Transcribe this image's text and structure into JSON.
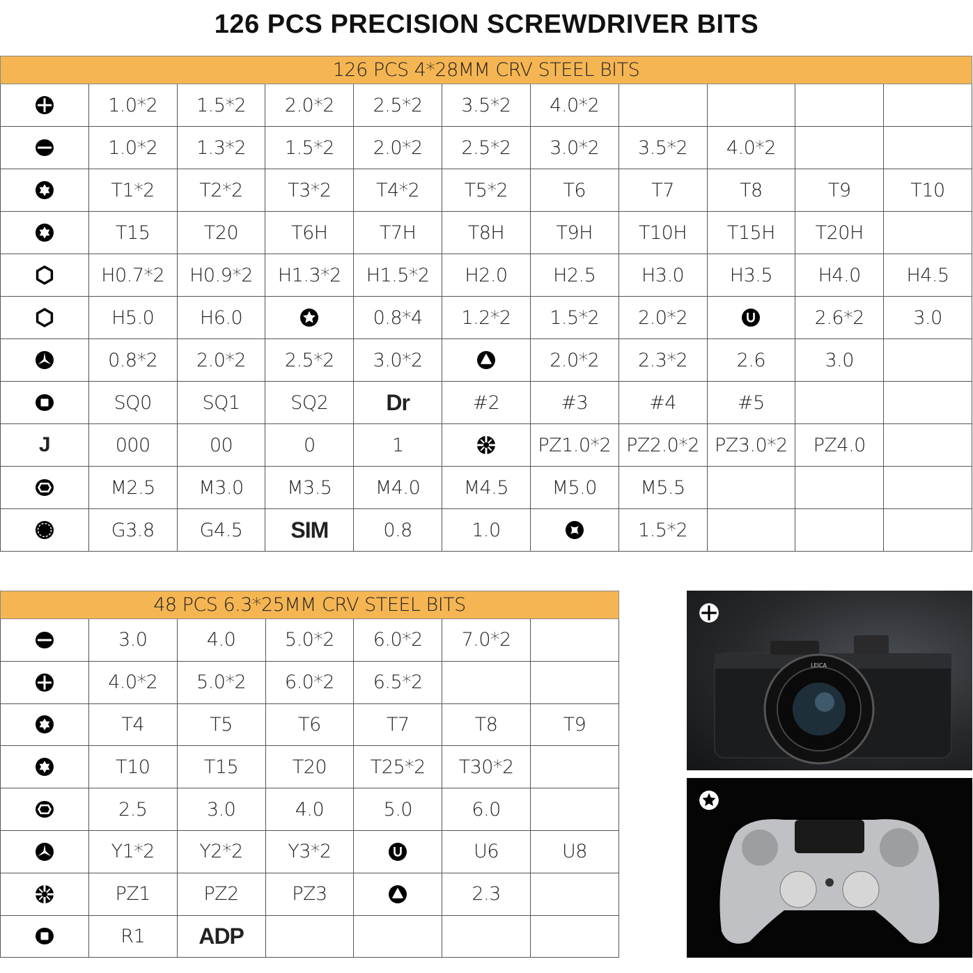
{
  "title": "126 PCS PRECISION SCREWDRIVER BITS",
  "table1": {
    "header": "126 PCS 4*28MM CRV STEEL BITS",
    "rows": [
      {
        "icon": "phillips",
        "cells": [
          "1.0*2",
          "1.5*2",
          "2.0*2",
          "2.5*2",
          "3.5*2",
          "4.0*2",
          "",
          "",
          "",
          ""
        ]
      },
      {
        "icon": "slotted",
        "cells": [
          "1.0*2",
          "1.3*2",
          "1.5*2",
          "2.0*2",
          "2.5*2",
          "3.0*2",
          "3.5*2",
          "4.0*2",
          "",
          ""
        ]
      },
      {
        "icon": "torx",
        "cells": [
          "T1*2",
          "T2*2",
          "T3*2",
          "T4*2",
          "T5*2",
          "T6",
          "T7",
          "T8",
          "T9",
          "T10"
        ]
      },
      {
        "icon": "torx",
        "cells": [
          "T15",
          "T20",
          "T6H",
          "T7H",
          "T8H",
          "T9H",
          "T10H",
          "T15H",
          "T20H",
          ""
        ]
      },
      {
        "icon": "hex",
        "cells": [
          "H0.7*2",
          "H0.9*2",
          "H1.3*2",
          "H1.5*2",
          "H2.0",
          "H2.5",
          "H3.0",
          "H3.5",
          "H4.0",
          "H4.5"
        ]
      },
      {
        "icon": "hex",
        "cells": [
          "H5.0",
          "H6.0",
          {
            "icon": "pentalobe"
          },
          "0.8*4",
          "1.2*2",
          "1.5*2",
          "2.0*2",
          {
            "icon": "u"
          },
          "2.6*2",
          "3.0"
        ]
      },
      {
        "icon": "triwing",
        "cells": [
          "0.8*2",
          "2.0*2",
          "2.5*2",
          "3.0*2",
          {
            "icon": "triangle"
          },
          "2.0*2",
          "2.3*2",
          "2.6",
          "3.0",
          ""
        ]
      },
      {
        "icon": "square",
        "cells": [
          "SQ0",
          "SQ1",
          "SQ2",
          {
            "text": "Dr",
            "bold": true
          },
          "#2",
          "#3",
          "#4",
          "#5",
          "",
          ""
        ]
      },
      {
        "icon": "j",
        "cells": [
          "000",
          "00",
          "0",
          "1",
          {
            "icon": "pozidriv"
          },
          "PZ1.0*2",
          "PZ2.0*2",
          "PZ3.0*2",
          "PZ4.0",
          ""
        ]
      },
      {
        "icon": "hexnut",
        "cells": [
          "M2.5",
          "M3.0",
          "M3.5",
          "M4.0",
          "M4.5",
          "M5.0",
          "M5.5",
          "",
          "",
          ""
        ]
      },
      {
        "icon": "gear",
        "cells": [
          "G3.8",
          "G4.5",
          {
            "text": "SIM",
            "bold": true
          },
          "0.8",
          "1.0",
          {
            "icon": "crossslot"
          },
          "1.5*2",
          "",
          "",
          ""
        ]
      }
    ]
  },
  "table2": {
    "header": "48 PCS 6.3*25MM CRV STEEL BITS",
    "rows": [
      {
        "icon": "slotted",
        "cells": [
          "3.0",
          "4.0",
          "5.0*2",
          "6.0*2",
          "7.0*2",
          ""
        ]
      },
      {
        "icon": "phillips",
        "cells": [
          "4.0*2",
          "5.0*2",
          "6.0*2",
          "6.5*2",
          "",
          ""
        ]
      },
      {
        "icon": "torx",
        "cells": [
          "T4",
          "T5",
          "T6",
          "T7",
          "T8",
          "T9"
        ]
      },
      {
        "icon": "torx",
        "cells": [
          "T10",
          "T15",
          "T20",
          "T25*2",
          "T30*2",
          ""
        ]
      },
      {
        "icon": "hexnut",
        "cells": [
          "2.5",
          "3.0",
          "4.0",
          "5.0",
          "6.0",
          ""
        ]
      },
      {
        "icon": "triwing",
        "cells": [
          "Y1*2",
          "Y2*2",
          "Y3*2",
          {
            "icon": "u"
          },
          "U6",
          "U8"
        ]
      },
      {
        "icon": "pozidriv",
        "cells": [
          "PZ1",
          "PZ2",
          "PZ3",
          {
            "icon": "triangle"
          },
          "2.3",
          ""
        ]
      },
      {
        "icon": "square",
        "cells": [
          "R1",
          {
            "text": "ADP",
            "bold": true
          },
          "",
          "",
          "",
          ""
        ]
      }
    ]
  },
  "photos": [
    {
      "subject": "camera",
      "icon": "phillips",
      "lens_text": "LEICA"
    },
    {
      "subject": "game-controller",
      "icon": "pentalobe"
    }
  ],
  "colors": {
    "header": "#f5b553",
    "border": "#555555"
  }
}
